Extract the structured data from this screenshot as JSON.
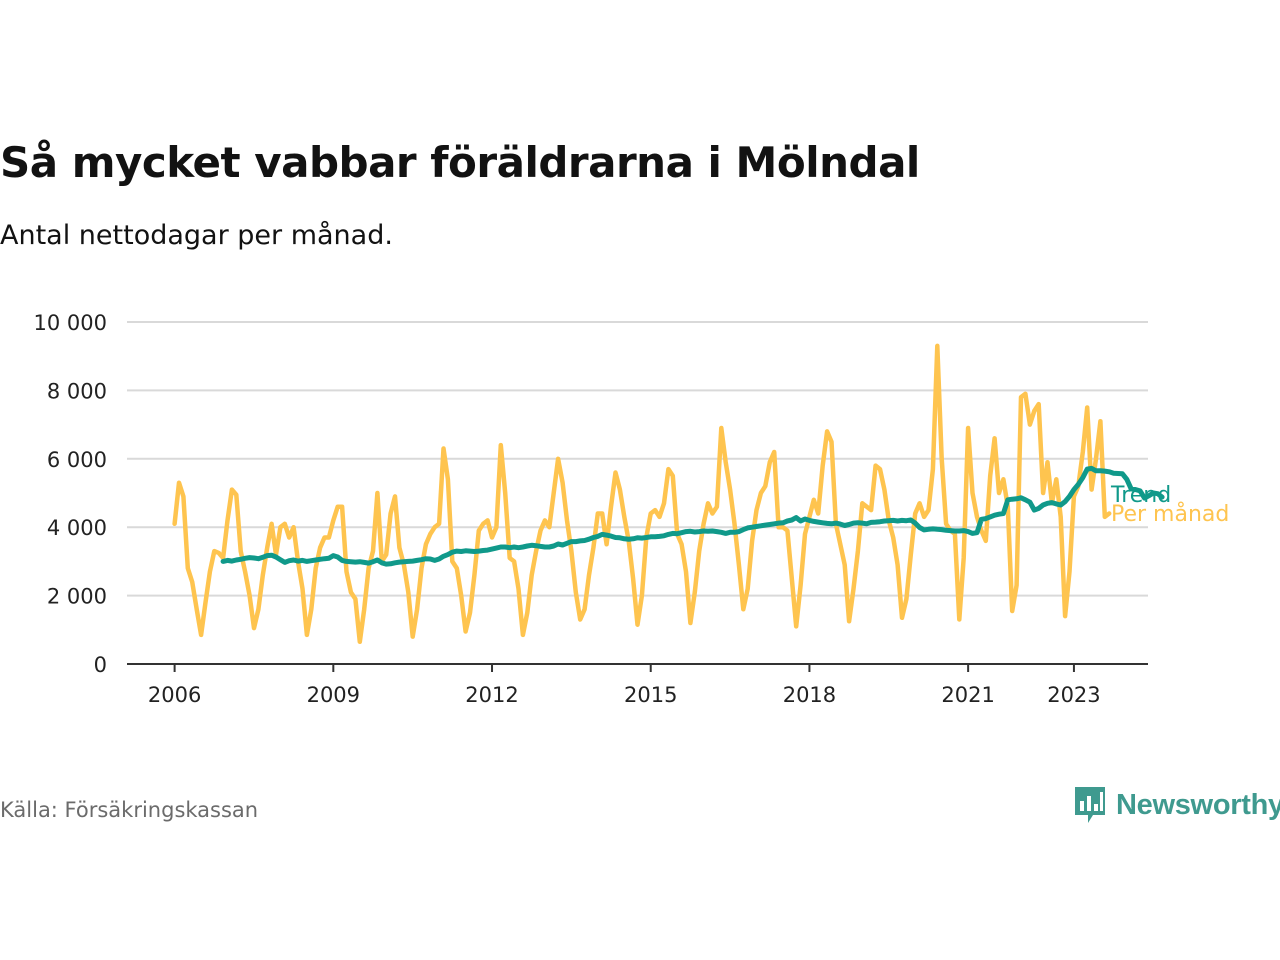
{
  "title": "Så mycket vabbar föräldrarna i Mölndal",
  "subtitle": "Antal nettodagar per månad.",
  "source": "Källa: Försäkringskassan",
  "brand": {
    "name": "Newsworthy",
    "icon": "newsworthy-bar-chart-icon",
    "color": "#3f9a8f"
  },
  "chart_data": {
    "type": "line",
    "xlim": [
      2005.1,
      2024.4
    ],
    "ylim": [
      0,
      10000
    ],
    "x_ticks": [
      2006,
      2009,
      2012,
      2015,
      2018,
      2021,
      2023
    ],
    "x_tick_labels": [
      "2006",
      "2009",
      "2012",
      "2015",
      "2018",
      "2021",
      "2023"
    ],
    "y_ticks": [
      0,
      2000,
      4000,
      6000,
      8000,
      10000
    ],
    "y_tick_labels": [
      "0",
      "2 000",
      "4 000",
      "6 000",
      "8 000",
      "10 000"
    ],
    "grid": "horizontal",
    "colors": {
      "trend": "#10998a",
      "monthly": "#fec44f",
      "grid": "#d9d9d9",
      "axis": "#333333"
    },
    "series": [
      {
        "name": "Per månad",
        "color": "#fec44f",
        "start": "2006-01",
        "values": [
          4100,
          5300,
          4900,
          2800,
          2400,
          1600,
          850,
          1800,
          2700,
          3300,
          3250,
          3100,
          4200,
          5100,
          4950,
          3300,
          2700,
          2000,
          1050,
          1600,
          2600,
          3400,
          4100,
          3200,
          4000,
          4100,
          3700,
          4000,
          3000,
          2200,
          850,
          1600,
          2800,
          3400,
          3700,
          3700,
          4200,
          4600,
          4600,
          2700,
          2100,
          1900,
          650,
          1600,
          2800,
          3300,
          5000,
          3000,
          3200,
          4400,
          4900,
          3400,
          2900,
          2100,
          800,
          1600,
          2800,
          3500,
          3800,
          4000,
          4100,
          6300,
          5400,
          3000,
          2800,
          2000,
          950,
          1500,
          2600,
          3900,
          4100,
          4200,
          3700,
          4000,
          6400,
          5000,
          3100,
          3000,
          2200,
          850,
          1500,
          2600,
          3300,
          3900,
          4200,
          4000,
          5000,
          6000,
          5300,
          4200,
          3300,
          2100,
          1300,
          1600,
          2600,
          3400,
          4400,
          4400,
          3500,
          4600,
          5600,
          5100,
          4300,
          3600,
          2500,
          1150,
          2000,
          3700,
          4400,
          4500,
          4300,
          4700,
          5700,
          5500,
          3800,
          3500,
          2700,
          1200,
          2100,
          3300,
          4100,
          4700,
          4400,
          4600,
          6900,
          5900,
          5100,
          4100,
          2900,
          1600,
          2200,
          3600,
          4500,
          5000,
          5200,
          5900,
          6200,
          4000,
          4000,
          3900,
          2500,
          1100,
          2300,
          3800,
          4300,
          4800,
          4400,
          5800,
          6800,
          6500,
          4100,
          3500,
          2900,
          1250,
          2200,
          3300,
          4700,
          4600,
          4500,
          5800,
          5700,
          5100,
          4200,
          3700,
          2900,
          1350,
          1900,
          3200,
          4400,
          4700,
          4300,
          4500,
          5700,
          9300,
          6000,
          4100,
          3900,
          3800,
          1300,
          3100,
          6900,
          5000,
          4300,
          3900,
          3600,
          5500,
          6600,
          5000,
          5400,
          4600,
          1550,
          2300,
          7800,
          7900,
          7000,
          7400,
          7600,
          5000,
          5900,
          4700,
          5400,
          4300,
          1400,
          2700,
          4900,
          5200,
          6200,
          7500,
          5100,
          6000,
          7100,
          4300,
          4400
        ]
      },
      {
        "name": "Trend",
        "color": "#10998a",
        "start": "2006-12",
        "values": [
          3000,
          3030,
          3010,
          3040,
          3060,
          3090,
          3110,
          3100,
          3080,
          3120,
          3170,
          3180,
          3130,
          3050,
          2970,
          3020,
          3040,
          3010,
          3030,
          3000,
          3020,
          3040,
          3060,
          3080,
          3090,
          3170,
          3130,
          3030,
          3000,
          2990,
          2980,
          2990,
          2970,
          2950,
          2990,
          3040,
          2960,
          2920,
          2930,
          2960,
          2980,
          2990,
          3000,
          3010,
          3030,
          3050,
          3080,
          3070,
          3030,
          3070,
          3150,
          3200,
          3270,
          3300,
          3290,
          3310,
          3300,
          3290,
          3300,
          3320,
          3330,
          3360,
          3390,
          3420,
          3420,
          3400,
          3420,
          3400,
          3420,
          3450,
          3470,
          3460,
          3440,
          3420,
          3420,
          3450,
          3510,
          3480,
          3530,
          3580,
          3580,
          3600,
          3610,
          3650,
          3700,
          3730,
          3790,
          3770,
          3740,
          3700,
          3690,
          3660,
          3650,
          3660,
          3690,
          3680,
          3700,
          3720,
          3720,
          3730,
          3750,
          3790,
          3820,
          3810,
          3840,
          3870,
          3880,
          3860,
          3870,
          3890,
          3880,
          3890,
          3870,
          3850,
          3820,
          3850,
          3850,
          3870,
          3930,
          3980,
          4000,
          4020,
          4040,
          4060,
          4080,
          4100,
          4120,
          4130,
          4180,
          4210,
          4280,
          4180,
          4240,
          4200,
          4170,
          4150,
          4130,
          4110,
          4100,
          4120,
          4090,
          4050,
          4080,
          4120,
          4130,
          4120,
          4100,
          4140,
          4150,
          4160,
          4180,
          4190,
          4200,
          4180,
          4200,
          4190,
          4210,
          4120,
          3990,
          3920,
          3940,
          3950,
          3940,
          3930,
          3910,
          3900,
          3890,
          3890,
          3900,
          3870,
          3820,
          3840,
          4230,
          4250,
          4300,
          4350,
          4380,
          4400,
          4800,
          4820,
          4830,
          4860,
          4800,
          4730,
          4500,
          4550,
          4650,
          4700,
          4720,
          4680,
          4650,
          4750,
          4900,
          5100,
          5250,
          5450,
          5700,
          5720,
          5650,
          5650,
          5640,
          5620,
          5580,
          5570,
          5560,
          5400,
          5120,
          5100,
          5060,
          4850,
          4920,
          5000,
          4980,
          4880
        ]
      }
    ]
  }
}
